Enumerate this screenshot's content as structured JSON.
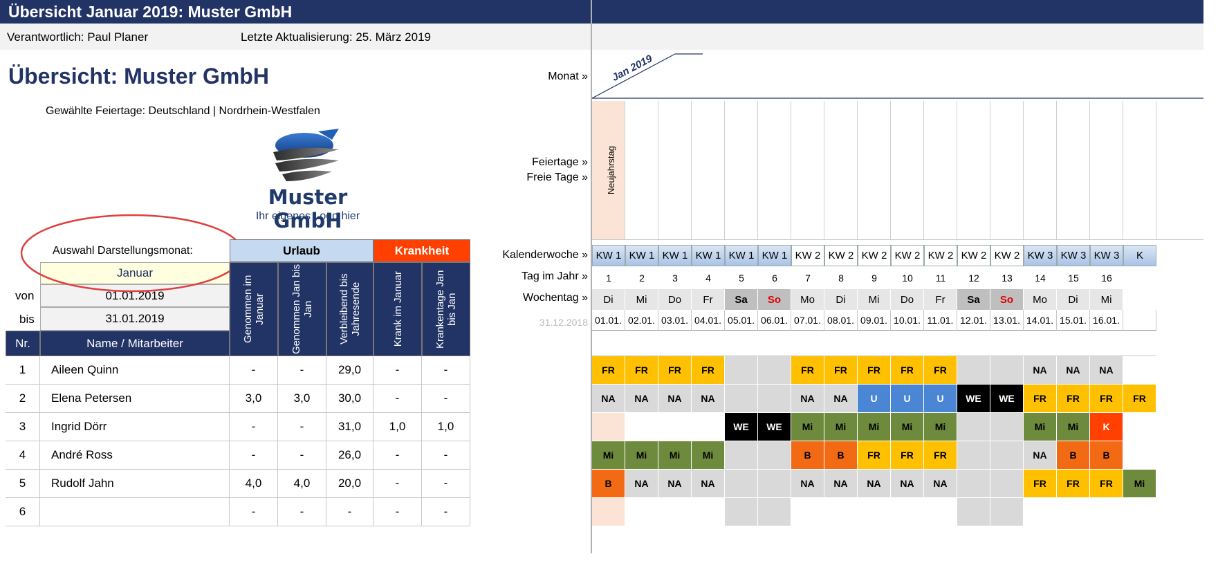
{
  "header": {
    "title": "Übersicht Januar 2019: Muster GmbH",
    "responsible": "Verantwortlich: Paul Planer",
    "last_update": "Letzte Aktualisierung: 25. März 2019"
  },
  "main_title": "Übersicht: Muster GmbH",
  "holidays_selected": "Gewählte Feiertage: Deutschland | Nordrhein-Westfalen",
  "logo": {
    "name": "Muster GmbH",
    "tagline": "Ihr eigenes Logo hier"
  },
  "selection": {
    "label": "Auswahl Darstellungsmonat:",
    "month": "Januar",
    "from_label": "von",
    "from_value": "01.01.2019",
    "to_label": "bis",
    "to_value": "31.01.2019"
  },
  "groups": {
    "vacation": "Urlaub",
    "sickness": "Krankheit"
  },
  "columns": {
    "nr": "Nr.",
    "name": "Name / Mitarbeiter",
    "taken_month": "Genommen im Januar",
    "taken_ytd": "Genommen Jan bis Jan",
    "remaining": "Verbleibend bis Jahresende",
    "sick_month": "Krank im Januar",
    "sick_ytd": "Krankentage Jan bis Jan"
  },
  "employees": [
    {
      "nr": "1",
      "name": "Aileen Quinn",
      "taken_month": "-",
      "taken_ytd": "-",
      "remaining": "29,0",
      "sick_month": "-",
      "sick_ytd": "-"
    },
    {
      "nr": "2",
      "name": "Elena Petersen",
      "taken_month": "3,0",
      "taken_ytd": "3,0",
      "remaining": "30,0",
      "sick_month": "-",
      "sick_ytd": "-"
    },
    {
      "nr": "3",
      "name": "Ingrid Dörr",
      "taken_month": "-",
      "taken_ytd": "-",
      "remaining": "31,0",
      "sick_month": "1,0",
      "sick_ytd": "1,0"
    },
    {
      "nr": "4",
      "name": "André Ross",
      "taken_month": "-",
      "taken_ytd": "-",
      "remaining": "26,0",
      "sick_month": "-",
      "sick_ytd": "-"
    },
    {
      "nr": "5",
      "name": "Rudolf Jahn",
      "taken_month": "4,0",
      "taken_ytd": "4,0",
      "remaining": "20,0",
      "sick_month": "-",
      "sick_ytd": "-"
    },
    {
      "nr": "6",
      "name": "",
      "taken_month": "-",
      "taken_ytd": "-",
      "remaining": "-",
      "sick_month": "-",
      "sick_ytd": "-"
    }
  ],
  "calendar_labels": {
    "month": "Monat »",
    "holidays": "Feiertage »",
    "free_days": "Freie Tage »",
    "week": "Kalenderwoche »",
    "day_of_year": "Tag im Jahr »",
    "weekday": "Wochentag »",
    "prev_date": "31.12.2018",
    "month_name": "Jan 2019",
    "holiday_name": "Neujahrstag"
  },
  "days": [
    {
      "kw": "KW 1",
      "n": "1",
      "wd": "Di",
      "date": "01.01."
    },
    {
      "kw": "KW 1",
      "n": "2",
      "wd": "Mi",
      "date": "02.01."
    },
    {
      "kw": "KW 1",
      "n": "3",
      "wd": "Do",
      "date": "03.01."
    },
    {
      "kw": "KW 1",
      "n": "4",
      "wd": "Fr",
      "date": "04.01."
    },
    {
      "kw": "KW 1",
      "n": "5",
      "wd": "Sa",
      "date": "05.01."
    },
    {
      "kw": "KW 1",
      "n": "6",
      "wd": "So",
      "date": "06.01."
    },
    {
      "kw": "KW 2",
      "n": "7",
      "wd": "Mo",
      "date": "07.01."
    },
    {
      "kw": "KW 2",
      "n": "8",
      "wd": "Di",
      "date": "08.01."
    },
    {
      "kw": "KW 2",
      "n": "9",
      "wd": "Mi",
      "date": "09.01."
    },
    {
      "kw": "KW 2",
      "n": "10",
      "wd": "Do",
      "date": "10.01."
    },
    {
      "kw": "KW 2",
      "n": "11",
      "wd": "Fr",
      "date": "11.01."
    },
    {
      "kw": "KW 2",
      "n": "12",
      "wd": "Sa",
      "date": "12.01."
    },
    {
      "kw": "KW 2",
      "n": "13",
      "wd": "So",
      "date": "13.01."
    },
    {
      "kw": "KW 3",
      "n": "14",
      "wd": "Mo",
      "date": "14.01."
    },
    {
      "kw": "KW 3",
      "n": "15",
      "wd": "Di",
      "date": "15.01."
    },
    {
      "kw": "KW 3",
      "n": "16",
      "wd": "Mi",
      "date": "16.01."
    },
    {
      "kw": "K",
      "n": "",
      "wd": "",
      "date": ""
    }
  ],
  "grid": [
    [
      "FR",
      "FR",
      "FR",
      "FR",
      "",
      "",
      "FR",
      "FR",
      "FR",
      "FR",
      "FR",
      "",
      "",
      "NA",
      "NA",
      "NA",
      ""
    ],
    [
      "NA",
      "NA",
      "NA",
      "NA",
      "",
      "",
      "NA",
      "NA",
      "U",
      "U",
      "U",
      "WE",
      "WE",
      "FR",
      "FR",
      "FR",
      "FR"
    ],
    [
      "",
      "",
      "",
      "",
      "WE",
      "WE",
      "Mi",
      "Mi",
      "Mi",
      "Mi",
      "Mi",
      "",
      "",
      "Mi",
      "Mi",
      "K",
      ""
    ],
    [
      "Mi",
      "Mi",
      "Mi",
      "Mi",
      "",
      "",
      "B",
      "B",
      "FR",
      "FR",
      "FR",
      "",
      "",
      "NA",
      "B",
      "B",
      ""
    ],
    [
      "B",
      "NA",
      "NA",
      "NA",
      "",
      "",
      "NA",
      "NA",
      "NA",
      "NA",
      "NA",
      "",
      "",
      "FR",
      "FR",
      "FR",
      "Mi"
    ],
    [
      "",
      "",
      "",
      "",
      "",
      "",
      "",
      "",
      "",
      "",
      "",
      "",
      "",
      "",
      "",
      "",
      ""
    ]
  ],
  "colors": {
    "navy": "#223366",
    "FR": "#FFC000",
    "NA": "#D9D9D9",
    "U": "#4A86D4",
    "WE": "#000000",
    "Mi": "#6E8B3D",
    "B": "#F26A14",
    "K": "#FF4000",
    "weekend": "#D9D9D9",
    "holiday": "#FBE4D5",
    "vacation_header": "#C5D9F1",
    "sick_header": "#FF4000"
  }
}
